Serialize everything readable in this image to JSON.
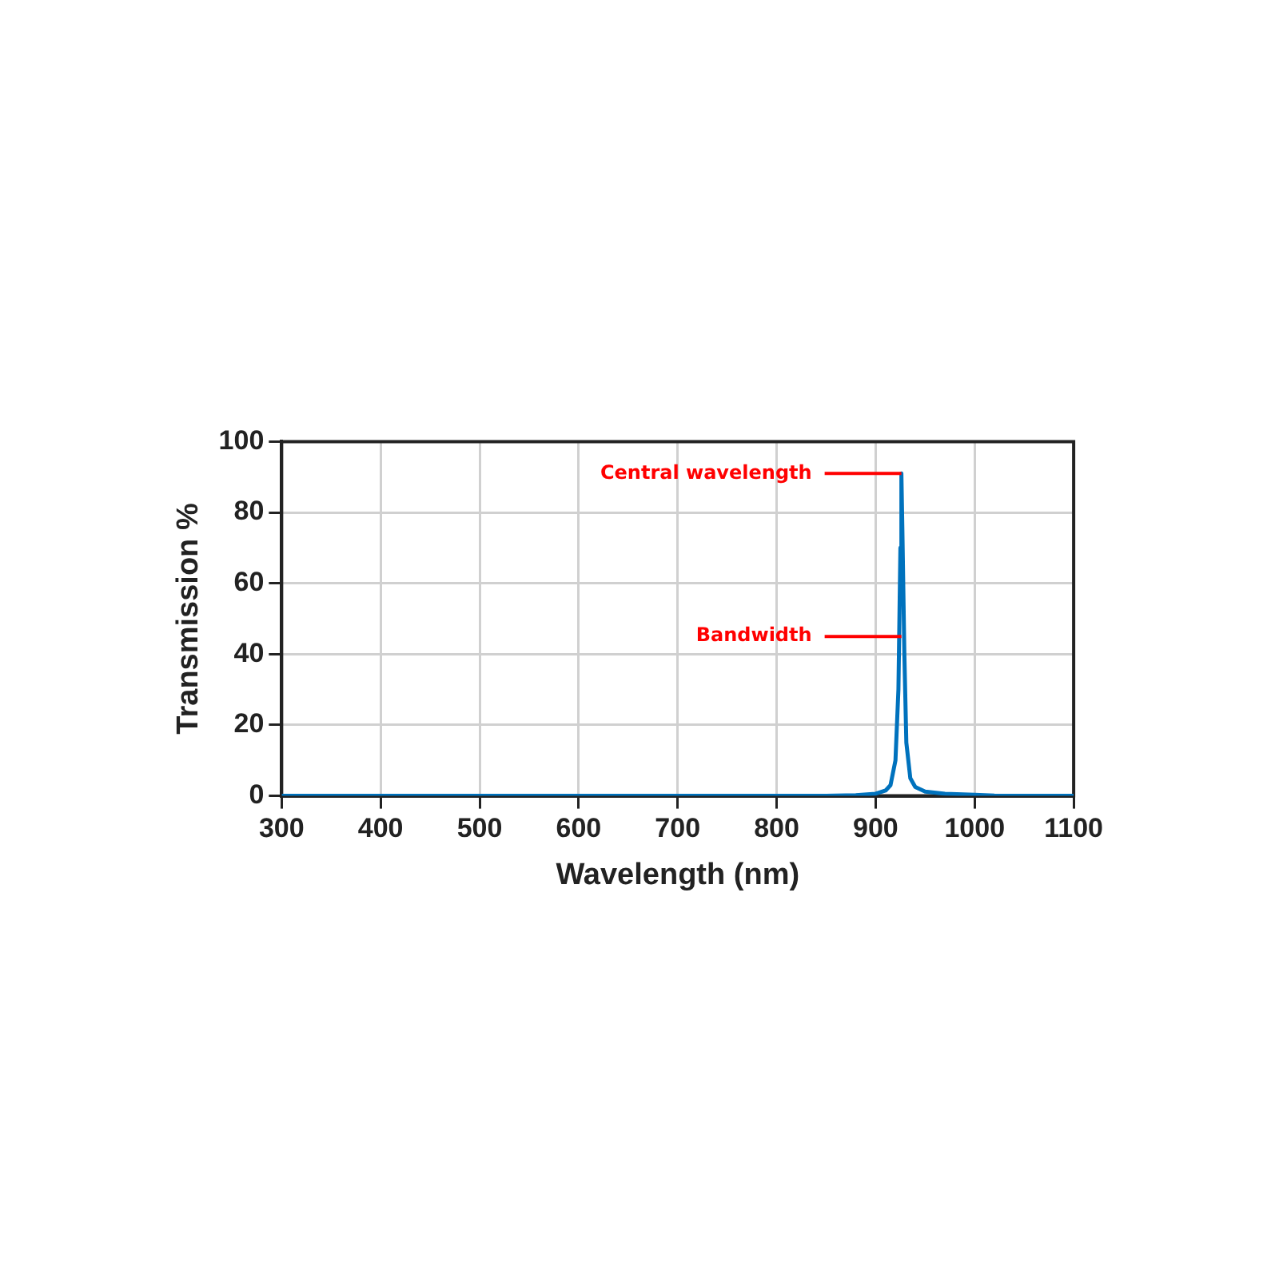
{
  "chart_data": {
    "type": "line",
    "xlabel": "Wavelength (nm)",
    "ylabel": "Transmission %",
    "series": [
      {
        "color": "#0072bd",
        "x": [
          300,
          850,
          880,
          900,
          910,
          915,
          920,
          923,
          925,
          926,
          927,
          929,
          931,
          935,
          940,
          950,
          970,
          1000,
          1020,
          1050,
          1100
        ],
        "values": [
          0,
          0,
          0.2,
          0.6,
          1.5,
          3,
          10,
          30,
          70,
          91,
          75,
          40,
          15,
          5,
          2.5,
          1.2,
          0.6,
          0.3,
          0.1,
          0,
          0
        ]
      }
    ],
    "xlim": [
      300,
      1100
    ],
    "xticks": [
      300,
      400,
      500,
      600,
      700,
      800,
      900,
      1000,
      1100
    ],
    "ylim": [
      0,
      100
    ],
    "yticks": [
      0,
      20,
      40,
      60,
      80,
      100
    ],
    "grid": true,
    "marker": "none",
    "line_style": "solid",
    "annotations": [
      {
        "text": "Central wavelength",
        "x": 926,
        "y": 91
      },
      {
        "text": "Bandwidth",
        "x": 926,
        "y": 45
      }
    ]
  }
}
